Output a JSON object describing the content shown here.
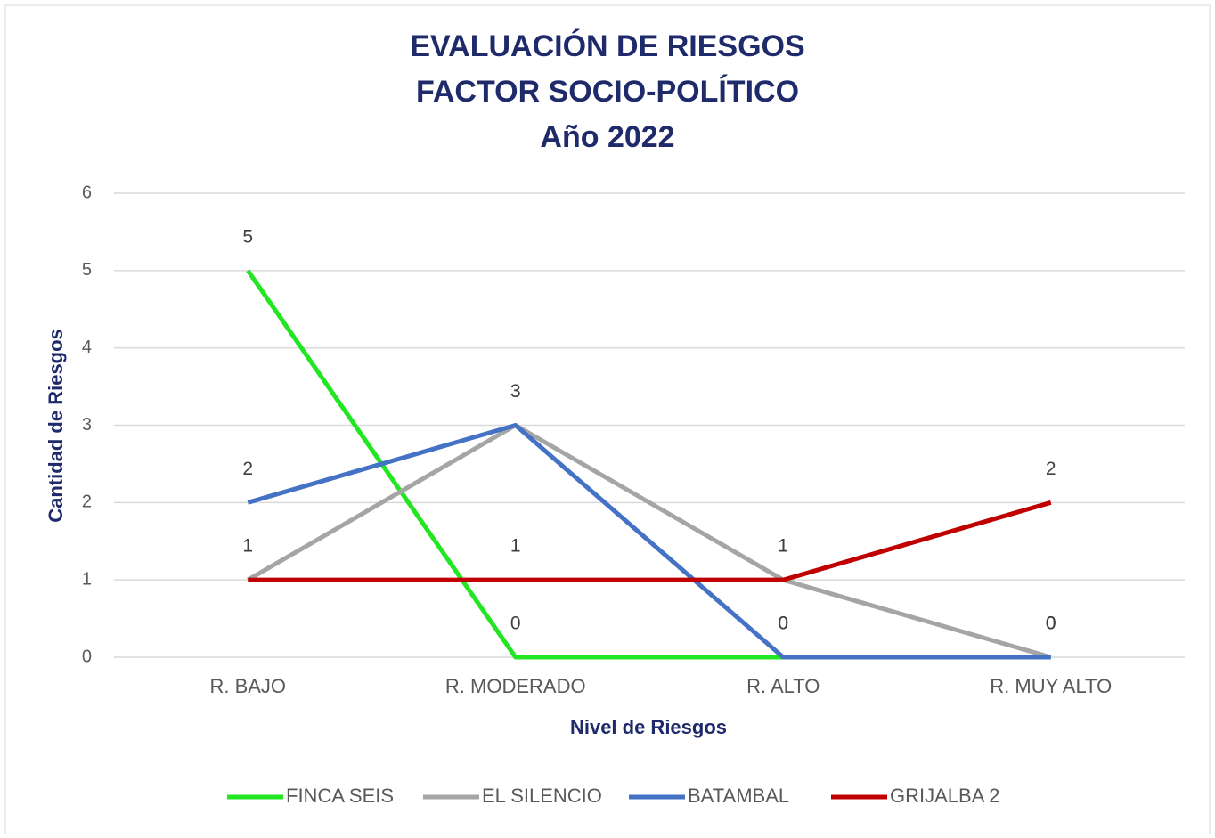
{
  "chart_data": {
    "type": "line",
    "title": [
      "EVALUACIÓN DE RIESGOS",
      "FACTOR SOCIO-POLÍTICO",
      "Año 2022"
    ],
    "x_label": "Nivel de Riesgos",
    "y_label": "Cantidad  de Riesgos",
    "categories": [
      "R. BAJO",
      "R. MODERADO",
      "R. ALTO",
      "R. MUY ALTO"
    ],
    "series": [
      {
        "name": "FINCA SEIS",
        "color": "#22e622",
        "values": [
          5,
          0,
          0,
          0
        ]
      },
      {
        "name": "EL SILENCIO",
        "color": "#a5a5a5",
        "values": [
          1,
          3,
          1,
          0
        ]
      },
      {
        "name": "BATAMBAL",
        "color": "#4472c4",
        "values": [
          2,
          3,
          0,
          0
        ]
      },
      {
        "name": "GRIJALBA 2",
        "color": "#c00000",
        "values": [
          1,
          1,
          1,
          2
        ]
      }
    ],
    "ylim": [
      0,
      6
    ],
    "yticks": [
      0,
      1,
      2,
      3,
      4,
      5,
      6
    ],
    "grid": true,
    "legend": "bottom"
  }
}
